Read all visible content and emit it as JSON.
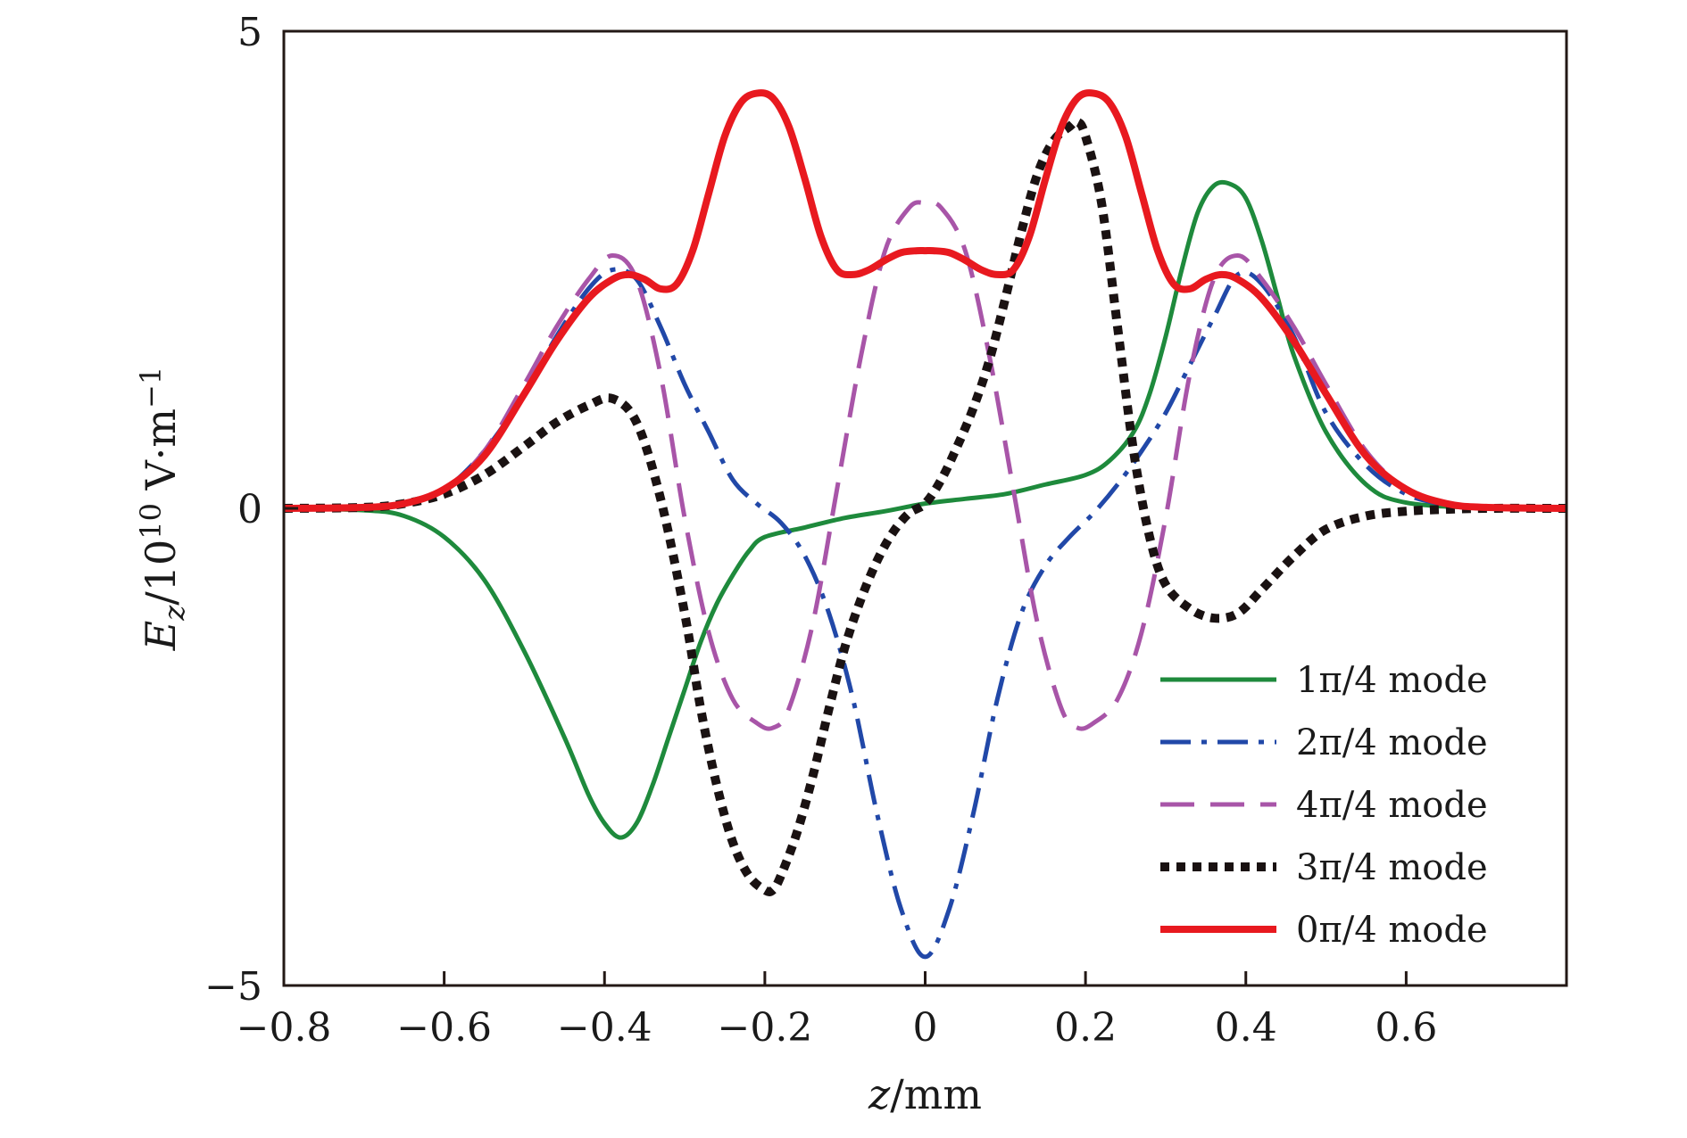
{
  "chart_data": {
    "type": "line",
    "title": "",
    "xlabel": "z/mm",
    "ylabel": "E_z/10^10 V·m^-1",
    "xlim": [
      -0.8,
      0.8
    ],
    "ylim": [
      -5,
      5
    ],
    "x_ticks": [
      -0.8,
      -0.6,
      -0.4,
      -0.2,
      0,
      0.2,
      0.4,
      0.6
    ],
    "x_tick_labels": [
      "−0.8",
      "−0.6",
      "−0.4",
      "−0.2",
      "0",
      "0.2",
      "0.4",
      "0.6"
    ],
    "y_ticks": [
      -5,
      0,
      5
    ],
    "y_tick_labels": [
      "−5",
      "0",
      "5"
    ],
    "grid": false,
    "legend_position": "bottom-right",
    "series": [
      {
        "name": "1π/4 mode",
        "color": "#1e8a3c",
        "style": "solid",
        "x": [
          -0.8,
          -0.7,
          -0.65,
          -0.6,
          -0.55,
          -0.5,
          -0.45,
          -0.42,
          -0.4,
          -0.38,
          -0.36,
          -0.34,
          -0.32,
          -0.3,
          -0.28,
          -0.26,
          -0.24,
          -0.22,
          -0.2,
          -0.15,
          -0.1,
          -0.05,
          0,
          0.05,
          0.1,
          0.15,
          0.2,
          0.23,
          0.26,
          0.28,
          0.3,
          0.32,
          0.34,
          0.36,
          0.38,
          0.4,
          0.42,
          0.44,
          0.46,
          0.5,
          0.55,
          0.6,
          0.7,
          0.8
        ],
        "y": [
          0,
          -0.02,
          -0.08,
          -0.3,
          -0.75,
          -1.5,
          -2.4,
          -3.0,
          -3.3,
          -3.45,
          -3.3,
          -2.9,
          -2.4,
          -1.9,
          -1.4,
          -1.0,
          -0.7,
          -0.45,
          -0.3,
          -0.2,
          -0.1,
          -0.03,
          0.05,
          0.1,
          0.15,
          0.25,
          0.35,
          0.5,
          0.8,
          1.2,
          1.8,
          2.5,
          3.1,
          3.38,
          3.4,
          3.25,
          2.8,
          2.2,
          1.6,
          0.8,
          0.25,
          0.06,
          0.005,
          0
        ]
      },
      {
        "name": "2π/4 mode",
        "color": "#2148a8",
        "style": "dashdot",
        "x": [
          -0.8,
          -0.7,
          -0.65,
          -0.6,
          -0.55,
          -0.5,
          -0.46,
          -0.42,
          -0.39,
          -0.36,
          -0.33,
          -0.3,
          -0.27,
          -0.24,
          -0.21,
          -0.18,
          -0.15,
          -0.12,
          -0.09,
          -0.06,
          -0.03,
          0,
          0.03,
          0.06,
          0.09,
          0.12,
          0.15,
          0.18,
          0.21,
          0.24,
          0.27,
          0.3,
          0.33,
          0.36,
          0.39,
          0.42,
          0.46,
          0.5,
          0.55,
          0.6,
          0.65,
          0.7,
          0.8
        ],
        "y": [
          0,
          0.01,
          0.05,
          0.2,
          0.6,
          1.2,
          1.8,
          2.3,
          2.5,
          2.4,
          1.9,
          1.3,
          0.8,
          0.3,
          0.05,
          -0.15,
          -0.5,
          -1.1,
          -2.0,
          -3.2,
          -4.2,
          -4.7,
          -4.2,
          -3.2,
          -2.0,
          -1.1,
          -0.6,
          -0.3,
          -0.05,
          0.25,
          0.6,
          1.0,
          1.5,
          2.0,
          2.45,
          2.35,
          1.8,
          1.0,
          0.45,
          0.15,
          0.04,
          0.01,
          0
        ]
      },
      {
        "name": "4π/4 mode",
        "color": "#a855a8",
        "style": "dashed",
        "x": [
          -0.8,
          -0.7,
          -0.65,
          -0.6,
          -0.55,
          -0.5,
          -0.46,
          -0.42,
          -0.39,
          -0.36,
          -0.33,
          -0.3,
          -0.27,
          -0.24,
          -0.21,
          -0.19,
          -0.17,
          -0.14,
          -0.11,
          -0.08,
          -0.05,
          -0.02,
          0,
          0.02,
          0.05,
          0.08,
          0.11,
          0.14,
          0.17,
          0.19,
          0.21,
          0.24,
          0.27,
          0.3,
          0.33,
          0.36,
          0.39,
          0.42,
          0.46,
          0.5,
          0.55,
          0.6,
          0.65,
          0.7,
          0.8
        ],
        "y": [
          0,
          0.01,
          0.05,
          0.2,
          0.6,
          1.3,
          1.9,
          2.4,
          2.65,
          2.4,
          1.4,
          -0.1,
          -1.3,
          -2.0,
          -2.25,
          -2.3,
          -2.1,
          -1.2,
          0.2,
          1.6,
          2.7,
          3.15,
          3.2,
          3.15,
          2.7,
          1.6,
          0.2,
          -1.2,
          -2.1,
          -2.3,
          -2.25,
          -2.0,
          -1.3,
          -0.1,
          1.4,
          2.4,
          2.65,
          2.4,
          1.9,
          1.3,
          0.6,
          0.2,
          0.05,
          0.01,
          0
        ]
      },
      {
        "name": "3π/4 mode",
        "color": "#1a1212",
        "style": "dotted",
        "x": [
          -0.8,
          -0.7,
          -0.65,
          -0.6,
          -0.55,
          -0.5,
          -0.46,
          -0.42,
          -0.39,
          -0.36,
          -0.33,
          -0.3,
          -0.28,
          -0.26,
          -0.24,
          -0.22,
          -0.2,
          -0.19,
          -0.18,
          -0.16,
          -0.14,
          -0.12,
          -0.1,
          -0.08,
          -0.06,
          -0.04,
          -0.02,
          0,
          0.02,
          0.04,
          0.06,
          0.08,
          0.1,
          0.12,
          0.14,
          0.16,
          0.18,
          0.19,
          0.2,
          0.22,
          0.24,
          0.26,
          0.28,
          0.3,
          0.33,
          0.36,
          0.39,
          0.42,
          0.46,
          0.5,
          0.55,
          0.6,
          0.65,
          0.7,
          0.8
        ],
        "y": [
          0,
          0.01,
          0.05,
          0.15,
          0.35,
          0.65,
          0.9,
          1.08,
          1.15,
          0.9,
          0.1,
          -1.1,
          -2.1,
          -2.9,
          -3.5,
          -3.85,
          -4.0,
          -4.0,
          -3.85,
          -3.4,
          -2.8,
          -2.1,
          -1.45,
          -0.95,
          -0.55,
          -0.25,
          -0.05,
          0.05,
          0.3,
          0.65,
          1.05,
          1.55,
          2.2,
          2.9,
          3.5,
          3.85,
          4.0,
          4.05,
          3.9,
          3.2,
          1.9,
          0.6,
          -0.3,
          -0.8,
          -1.05,
          -1.15,
          -1.1,
          -0.85,
          -0.5,
          -0.22,
          -0.08,
          -0.03,
          -0.01,
          0,
          0
        ]
      },
      {
        "name": "0π/4 mode",
        "color": "#e8191f",
        "style": "solid-thick",
        "x": [
          -0.8,
          -0.7,
          -0.65,
          -0.6,
          -0.55,
          -0.5,
          -0.46,
          -0.42,
          -0.39,
          -0.37,
          -0.35,
          -0.33,
          -0.31,
          -0.29,
          -0.27,
          -0.25,
          -0.23,
          -0.21,
          -0.19,
          -0.17,
          -0.15,
          -0.13,
          -0.11,
          -0.09,
          -0.07,
          -0.05,
          -0.03,
          -0.01,
          0,
          0.01,
          0.03,
          0.05,
          0.07,
          0.09,
          0.11,
          0.13,
          0.15,
          0.17,
          0.19,
          0.21,
          0.23,
          0.25,
          0.27,
          0.29,
          0.31,
          0.33,
          0.35,
          0.37,
          0.39,
          0.42,
          0.46,
          0.5,
          0.55,
          0.6,
          0.65,
          0.7,
          0.8
        ],
        "y": [
          0,
          0.01,
          0.05,
          0.2,
          0.55,
          1.2,
          1.75,
          2.2,
          2.4,
          2.45,
          2.4,
          2.3,
          2.35,
          2.7,
          3.3,
          3.9,
          4.25,
          4.35,
          4.3,
          4.0,
          3.45,
          2.85,
          2.5,
          2.45,
          2.5,
          2.6,
          2.68,
          2.7,
          2.7,
          2.7,
          2.68,
          2.6,
          2.5,
          2.45,
          2.5,
          2.85,
          3.45,
          4.0,
          4.3,
          4.35,
          4.25,
          3.9,
          3.3,
          2.7,
          2.35,
          2.3,
          2.4,
          2.45,
          2.4,
          2.2,
          1.75,
          1.2,
          0.55,
          0.2,
          0.05,
          0.01,
          0
        ]
      }
    ]
  }
}
